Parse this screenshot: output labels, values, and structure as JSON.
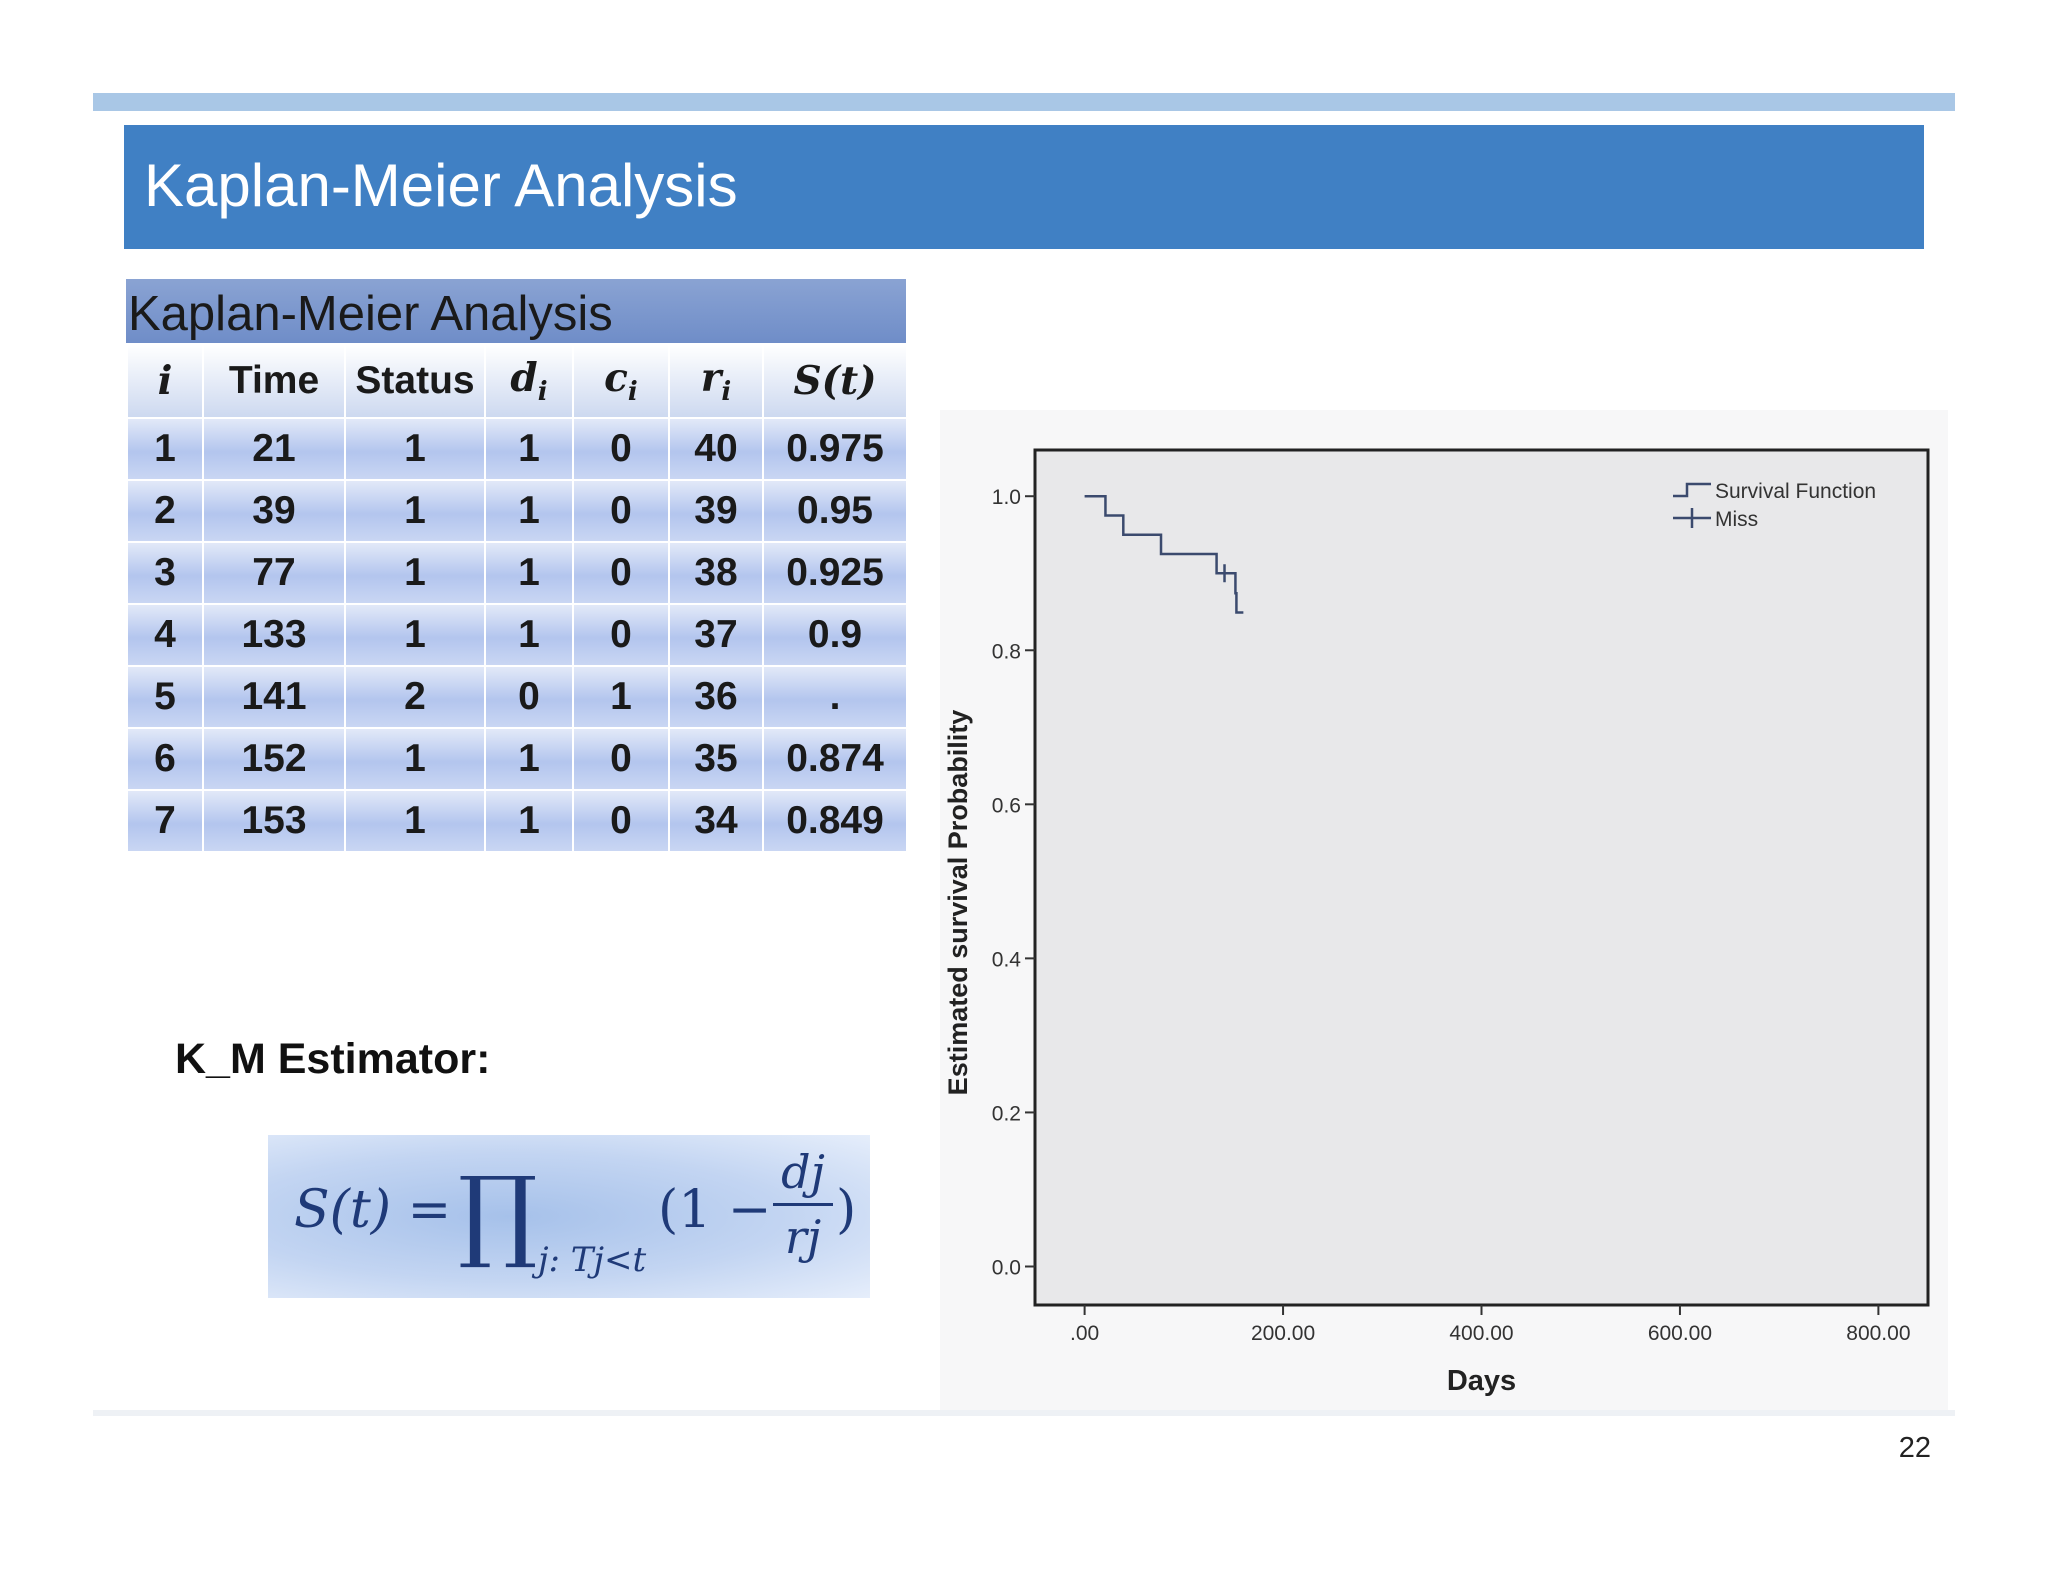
{
  "slide": {
    "title": "Kaplan-Meier Analysis",
    "page_number": "22"
  },
  "table": {
    "title": "Kaplan-Meier Analysis",
    "headers": {
      "i": "i",
      "time": "Time",
      "status": "Status",
      "d": "d",
      "d_sub": "i",
      "c": "c",
      "c_sub": "i",
      "r": "r",
      "r_sub": "i",
      "s": "S(t)"
    },
    "rows": [
      {
        "i": "1",
        "time": "21",
        "status": "1",
        "d": "1",
        "c": "0",
        "r": "40",
        "s": "0.975"
      },
      {
        "i": "2",
        "time": "39",
        "status": "1",
        "d": "1",
        "c": "0",
        "r": "39",
        "s": "0.95"
      },
      {
        "i": "3",
        "time": "77",
        "status": "1",
        "d": "1",
        "c": "0",
        "r": "38",
        "s": "0.925"
      },
      {
        "i": "4",
        "time": "133",
        "status": "1",
        "d": "1",
        "c": "0",
        "r": "37",
        "s": "0.9"
      },
      {
        "i": "5",
        "time": "141",
        "status": "2",
        "d": "0",
        "c": "1",
        "r": "36",
        "s": "."
      },
      {
        "i": "6",
        "time": "152",
        "status": "1",
        "d": "1",
        "c": "0",
        "r": "35",
        "s": "0.874"
      },
      {
        "i": "7",
        "time": "153",
        "status": "1",
        "d": "1",
        "c": "0",
        "r": "34",
        "s": "0.849"
      }
    ]
  },
  "estimator": {
    "label": "K_M Estimator:",
    "formula_left": "S(t) =",
    "formula_product": "∏",
    "formula_subscript": "j: Tj<t",
    "formula_paren": "(1 −",
    "formula_numerator": "dj",
    "formula_denominator": "rj",
    "formula_close": ")"
  },
  "chart_data": {
    "type": "line",
    "xlabel": "Days",
    "ylabel": "Estimated survival Probability",
    "xlim": [
      -50,
      850
    ],
    "ylim": [
      -0.05,
      1.06
    ],
    "xticks": [
      0,
      200,
      400,
      600,
      800
    ],
    "xtick_labels": [
      ".00",
      "200.00",
      "400.00",
      "600.00",
      "800.00"
    ],
    "yticks": [
      0,
      0.2,
      0.4,
      0.6,
      0.8,
      1.0
    ],
    "ytick_labels": [
      "0.0",
      "0.2",
      "0.4",
      "0.6",
      "0.8",
      "1.0"
    ],
    "grid": false,
    "legend_position": "top-right",
    "legend": [
      "Survival Function",
      "Miss"
    ],
    "series": [
      {
        "name": "Survival Function",
        "type": "step",
        "color": "#3b4a6e",
        "x": [
          0,
          21,
          39,
          77,
          133,
          152,
          153,
          160
        ],
        "y": [
          1.0,
          0.975,
          0.95,
          0.925,
          0.9,
          0.874,
          0.849,
          0.849
        ]
      },
      {
        "name": "Miss",
        "type": "censor",
        "color": "#3b4a6e",
        "x": [
          141
        ],
        "y": [
          0.9
        ]
      }
    ]
  }
}
